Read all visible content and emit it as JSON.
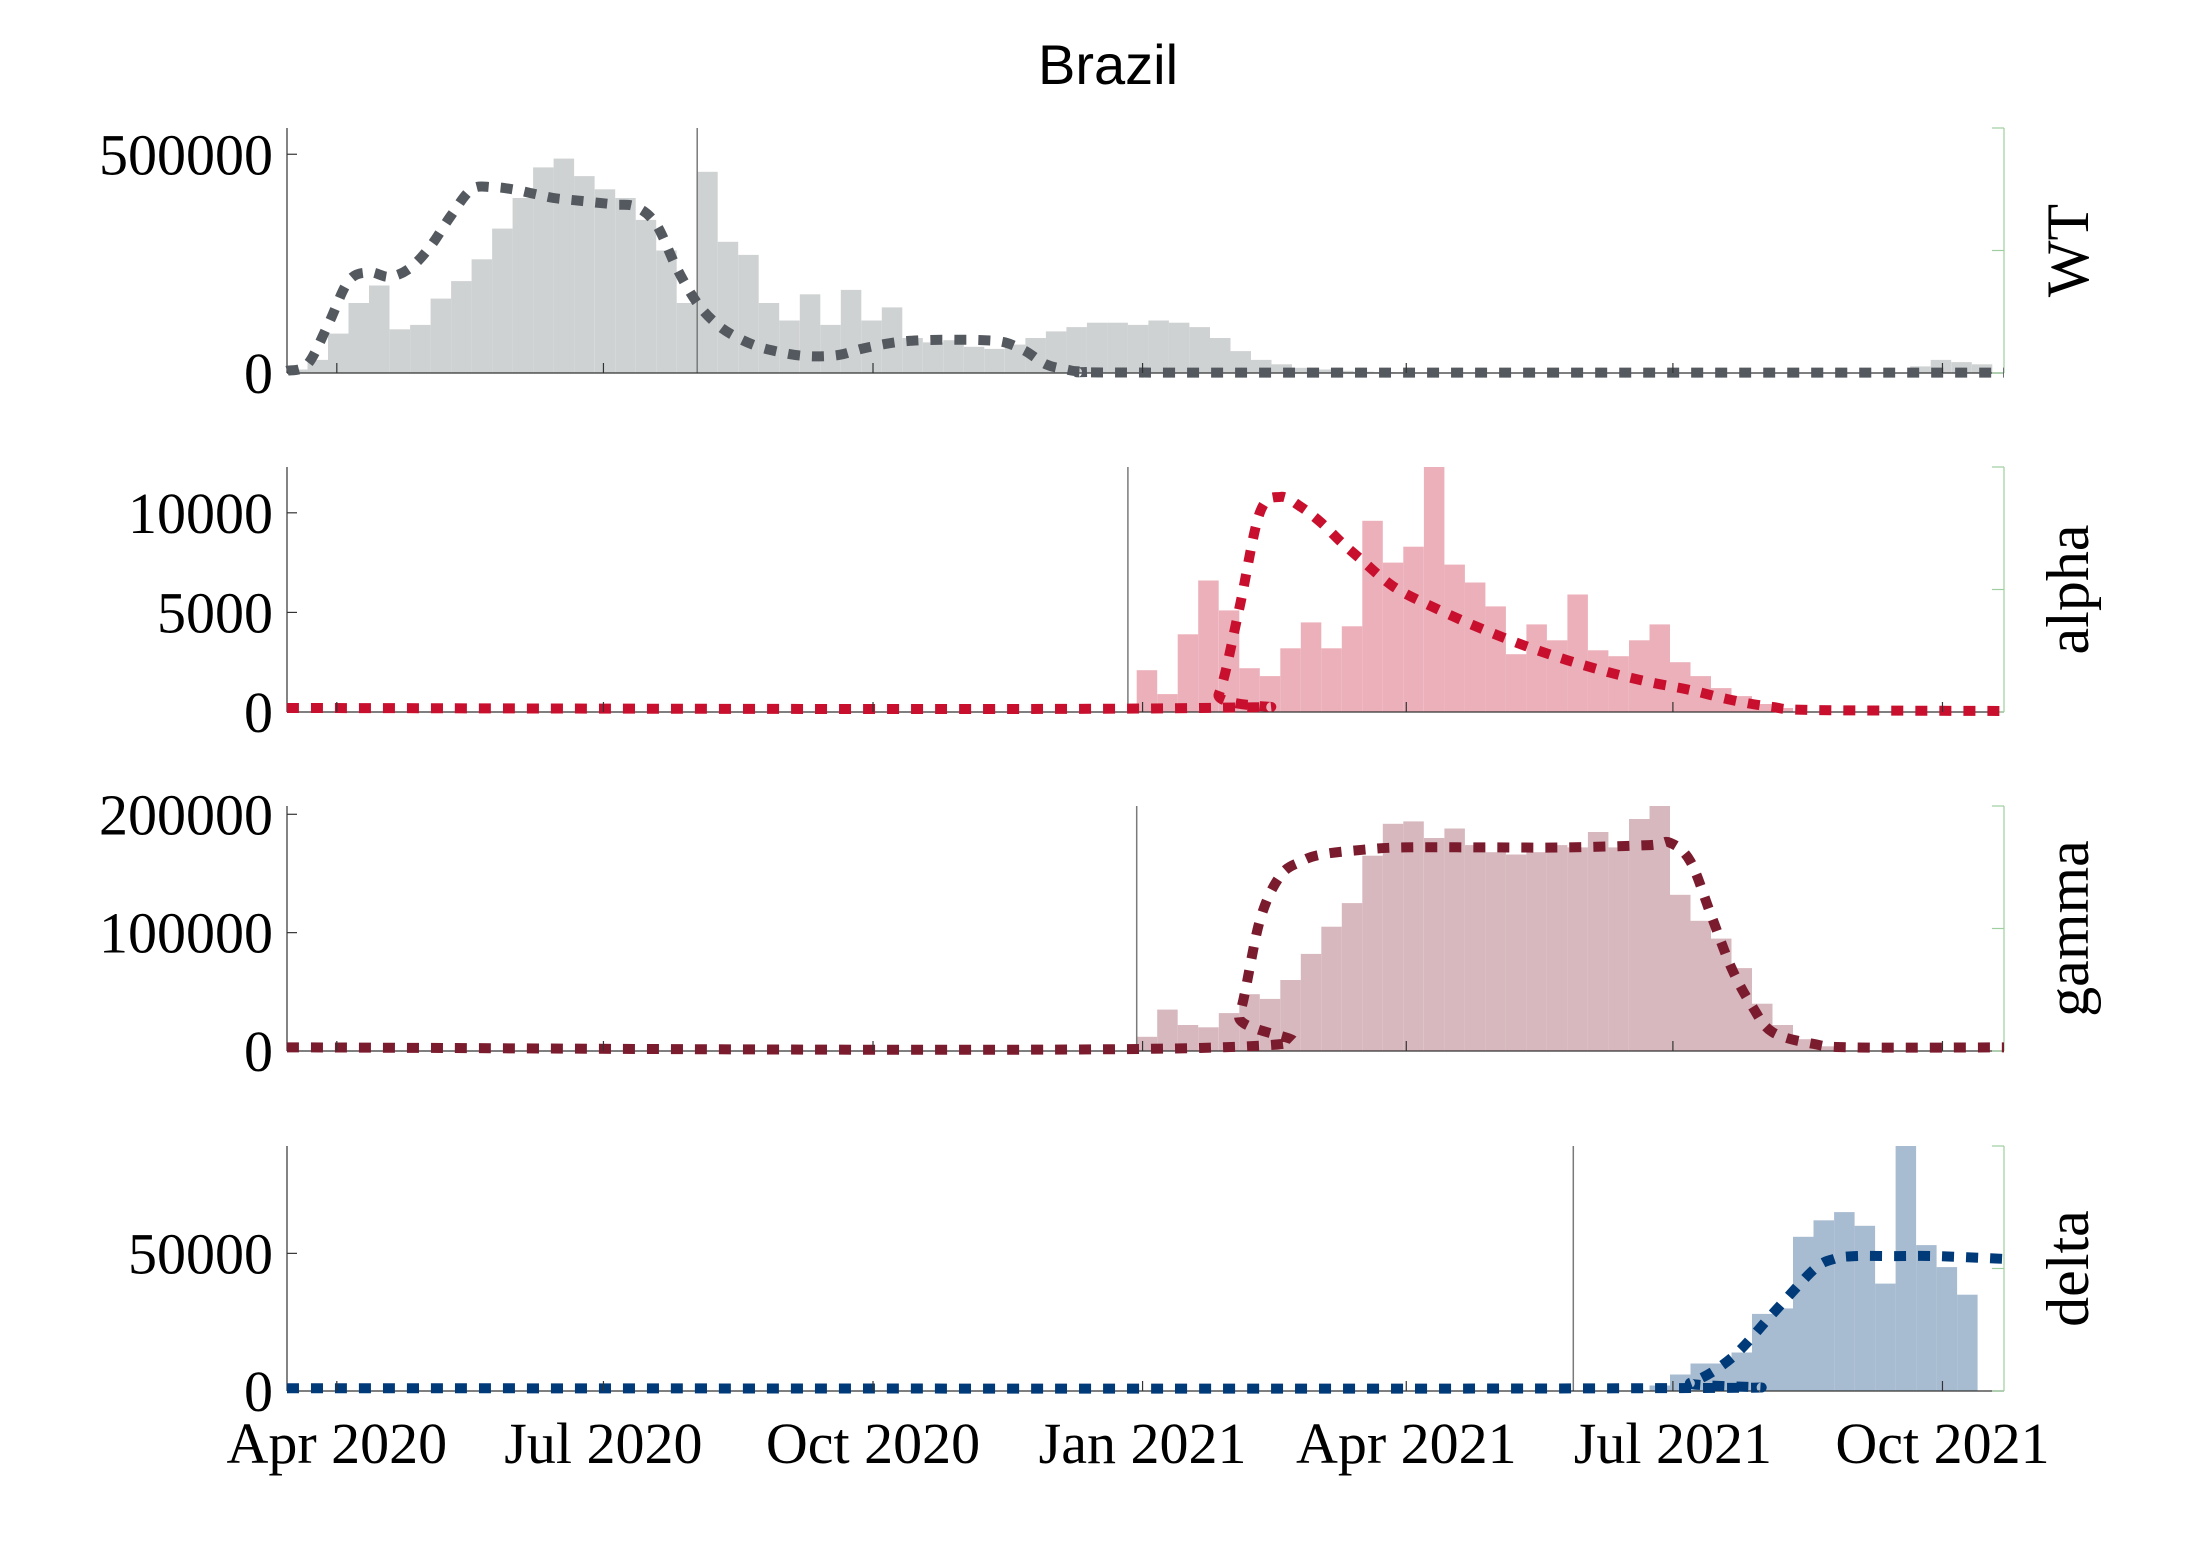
{
  "chart_data": {
    "type": "bar",
    "title": "Brazil",
    "x_axis": {
      "range": [
        "2020-03-15",
        "2021-10-22"
      ],
      "ticks": [
        "2020-04-01",
        "2020-07-01",
        "2020-10-01",
        "2021-01-01",
        "2021-04-01",
        "2021-07-01",
        "2021-10-01"
      ],
      "tick_labels": [
        "Apr 2020",
        "Jul 2020",
        "Oct 2020",
        "Jan 2021",
        "Apr 2021",
        "Jul 2021",
        "Oct 2021"
      ]
    },
    "panels": [
      {
        "label": "WT",
        "color": "#54595f",
        "bar_color": "#cfd2d3",
        "ylim": [
          0,
          560000
        ],
        "yticks": [
          0,
          500000
        ],
        "ytick_labels": [
          "0",
          "500000"
        ],
        "bars": [
          [
            "2020-03-15",
            8000
          ],
          [
            "2020-03-22",
            30000
          ],
          [
            "2020-03-29",
            90000
          ],
          [
            "2020-04-05",
            160000
          ],
          [
            "2020-04-12",
            200000
          ],
          [
            "2020-04-19",
            100000
          ],
          [
            "2020-04-26",
            110000
          ],
          [
            "2020-05-03",
            170000
          ],
          [
            "2020-05-10",
            210000
          ],
          [
            "2020-05-17",
            260000
          ],
          [
            "2020-05-24",
            330000
          ],
          [
            "2020-05-31",
            400000
          ],
          [
            "2020-06-07",
            470000
          ],
          [
            "2020-06-14",
            490000
          ],
          [
            "2020-06-21",
            450000
          ],
          [
            "2020-06-28",
            420000
          ],
          [
            "2020-07-05",
            400000
          ],
          [
            "2020-07-12",
            350000
          ],
          [
            "2020-07-19",
            280000
          ],
          [
            "2020-07-26",
            160000
          ],
          [
            "2020-08-02",
            460000
          ],
          [
            "2020-08-09",
            300000
          ],
          [
            "2020-08-16",
            270000
          ],
          [
            "2020-08-23",
            160000
          ],
          [
            "2020-08-30",
            120000
          ],
          [
            "2020-09-06",
            180000
          ],
          [
            "2020-09-13",
            110000
          ],
          [
            "2020-09-20",
            190000
          ],
          [
            "2020-09-27",
            120000
          ],
          [
            "2020-10-04",
            150000
          ],
          [
            "2020-10-11",
            80000
          ],
          [
            "2020-10-18",
            70000
          ],
          [
            "2020-10-25",
            75000
          ],
          [
            "2020-11-01",
            60000
          ],
          [
            "2020-11-08",
            55000
          ],
          [
            "2020-11-15",
            65000
          ],
          [
            "2020-11-22",
            80000
          ],
          [
            "2020-11-29",
            95000
          ],
          [
            "2020-12-06",
            105000
          ],
          [
            "2020-12-13",
            115000
          ],
          [
            "2020-12-20",
            115000
          ],
          [
            "2020-12-27",
            110000
          ],
          [
            "2021-01-03",
            120000
          ],
          [
            "2021-01-10",
            115000
          ],
          [
            "2021-01-17",
            105000
          ],
          [
            "2021-01-24",
            80000
          ],
          [
            "2021-01-31",
            50000
          ],
          [
            "2021-02-07",
            30000
          ],
          [
            "2021-02-14",
            20000
          ],
          [
            "2021-02-21",
            12000
          ],
          [
            "2021-02-28",
            8000
          ],
          [
            "2021-03-07",
            5000
          ],
          [
            "2021-03-14",
            3000
          ],
          [
            "2021-03-21",
            2000
          ],
          [
            "2021-03-28",
            1500
          ],
          [
            "2021-04-04",
            1000
          ],
          [
            "2021-09-20",
            15000
          ],
          [
            "2021-09-27",
            30000
          ],
          [
            "2021-10-04",
            25000
          ],
          [
            "2021-10-11",
            20000
          ]
        ],
        "model": [
          [
            "2020-03-15",
            5000
          ],
          [
            "2020-03-22",
            20000
          ],
          [
            "2020-03-29",
            110000
          ],
          [
            "2020-04-05",
            210000
          ],
          [
            "2020-04-12",
            230000
          ],
          [
            "2020-04-19",
            220000
          ],
          [
            "2020-04-26",
            240000
          ],
          [
            "2020-05-03",
            290000
          ],
          [
            "2020-05-10",
            360000
          ],
          [
            "2020-05-17",
            420000
          ],
          [
            "2020-05-24",
            425000
          ],
          [
            "2020-05-31",
            420000
          ],
          [
            "2020-06-07",
            410000
          ],
          [
            "2020-06-14",
            400000
          ],
          [
            "2020-06-21",
            395000
          ],
          [
            "2020-06-28",
            390000
          ],
          [
            "2020-07-05",
            385000
          ],
          [
            "2020-07-12",
            380000
          ],
          [
            "2020-07-19",
            340000
          ],
          [
            "2020-07-26",
            240000
          ],
          [
            "2020-08-02",
            160000
          ],
          [
            "2020-08-09",
            110000
          ],
          [
            "2020-08-16",
            80000
          ],
          [
            "2020-08-23",
            60000
          ],
          [
            "2020-08-30",
            48000
          ],
          [
            "2020-09-06",
            40000
          ],
          [
            "2020-09-13",
            38000
          ],
          [
            "2020-09-20",
            42000
          ],
          [
            "2020-09-27",
            55000
          ],
          [
            "2020-10-04",
            65000
          ],
          [
            "2020-10-11",
            72000
          ],
          [
            "2020-10-18",
            75000
          ],
          [
            "2020-10-25",
            76000
          ],
          [
            "2020-11-01",
            76000
          ],
          [
            "2020-11-08",
            75000
          ],
          [
            "2020-11-15",
            70000
          ],
          [
            "2020-11-22",
            50000
          ],
          [
            "2020-11-29",
            20000
          ],
          [
            "2020-12-06",
            8000
          ],
          [
            "2020-12-13",
            3000
          ],
          [
            "2021-01-10",
            1000
          ],
          [
            "2021-10-22",
            1000
          ]
        ],
        "marker_date": "2020-08-02"
      },
      {
        "label": "alpha",
        "color": "#c8102e",
        "bar_color": "#ecb0ba",
        "ylim": [
          0,
          12300
        ],
        "yticks": [
          0,
          5000,
          10000
        ],
        "ytick_labels": [
          "0",
          "5000",
          "10000"
        ],
        "bars": [
          [
            "2020-12-30",
            2100
          ],
          [
            "2021-01-06",
            900
          ],
          [
            "2021-01-13",
            3900
          ],
          [
            "2021-01-20",
            6600
          ],
          [
            "2021-01-27",
            5100
          ],
          [
            "2021-02-03",
            2200
          ],
          [
            "2021-02-10",
            1800
          ],
          [
            "2021-02-17",
            3200
          ],
          [
            "2021-02-24",
            4500
          ],
          [
            "2021-03-03",
            3200
          ],
          [
            "2021-03-10",
            4300
          ],
          [
            "2021-03-17",
            9600
          ],
          [
            "2021-03-24",
            7500
          ],
          [
            "2021-03-31",
            8300
          ],
          [
            "2021-04-07",
            12300
          ],
          [
            "2021-04-14",
            7400
          ],
          [
            "2021-04-21",
            6500
          ],
          [
            "2021-04-28",
            5300
          ],
          [
            "2021-05-05",
            2900
          ],
          [
            "2021-05-12",
            4400
          ],
          [
            "2021-05-19",
            3600
          ],
          [
            "2021-05-26",
            5900
          ],
          [
            "2021-06-02",
            3100
          ],
          [
            "2021-06-09",
            2800
          ],
          [
            "2021-06-16",
            3600
          ],
          [
            "2021-06-23",
            4400
          ],
          [
            "2021-06-30",
            2500
          ],
          [
            "2021-07-07",
            1800
          ],
          [
            "2021-07-14",
            1200
          ],
          [
            "2021-07-21",
            800
          ],
          [
            "2021-07-28",
            400
          ],
          [
            "2021-08-04",
            200
          ]
        ],
        "model": [
          [
            "2020-03-15",
            200
          ],
          [
            "2021-01-20",
            200
          ],
          [
            "2021-01-27",
            900
          ],
          [
            "2021-02-03",
            5200
          ],
          [
            "2021-02-10",
            10000
          ],
          [
            "2021-02-17",
            10800
          ],
          [
            "2021-02-24",
            10300
          ],
          [
            "2021-03-03",
            9500
          ],
          [
            "2021-03-10",
            8500
          ],
          [
            "2021-03-17",
            7600
          ],
          [
            "2021-03-24",
            6700
          ],
          [
            "2021-03-31",
            6000
          ],
          [
            "2021-04-14",
            5000
          ],
          [
            "2021-04-28",
            4100
          ],
          [
            "2021-05-12",
            3300
          ],
          [
            "2021-05-26",
            2600
          ],
          [
            "2021-06-09",
            2000
          ],
          [
            "2021-06-23",
            1500
          ],
          [
            "2021-07-07",
            1100
          ],
          [
            "2021-07-21",
            600
          ],
          [
            "2021-08-04",
            250
          ],
          [
            "2021-08-18",
            100
          ],
          [
            "2021-10-22",
            50
          ]
        ],
        "marker_date": "2020-12-27"
      },
      {
        "label": "gamma",
        "color": "#7b1c2e",
        "bar_color": "#d7b8be",
        "ylim": [
          0,
          207000
        ],
        "yticks": [
          0,
          100000,
          200000
        ],
        "ytick_labels": [
          "0",
          "100000",
          "200000"
        ],
        "bars": [
          [
            "2020-12-30",
            12000
          ],
          [
            "2021-01-06",
            35000
          ],
          [
            "2021-01-13",
            22000
          ],
          [
            "2021-01-20",
            20000
          ],
          [
            "2021-01-27",
            32000
          ],
          [
            "2021-02-03",
            48000
          ],
          [
            "2021-02-10",
            44000
          ],
          [
            "2021-02-17",
            60000
          ],
          [
            "2021-02-24",
            82000
          ],
          [
            "2021-03-03",
            105000
          ],
          [
            "2021-03-10",
            125000
          ],
          [
            "2021-03-17",
            165000
          ],
          [
            "2021-03-24",
            192000
          ],
          [
            "2021-03-31",
            194000
          ],
          [
            "2021-04-07",
            180000
          ],
          [
            "2021-04-14",
            188000
          ],
          [
            "2021-04-21",
            174000
          ],
          [
            "2021-04-28",
            168000
          ],
          [
            "2021-05-05",
            166000
          ],
          [
            "2021-05-12",
            168000
          ],
          [
            "2021-05-19",
            174000
          ],
          [
            "2021-05-26",
            172000
          ],
          [
            "2021-06-02",
            185000
          ],
          [
            "2021-06-09",
            172000
          ],
          [
            "2021-06-16",
            196000
          ],
          [
            "2021-06-23",
            208000
          ],
          [
            "2021-06-30",
            132000
          ],
          [
            "2021-07-07",
            110000
          ],
          [
            "2021-07-14",
            95000
          ],
          [
            "2021-07-21",
            70000
          ],
          [
            "2021-07-28",
            40000
          ],
          [
            "2021-08-04",
            22000
          ],
          [
            "2021-08-11",
            10000
          ],
          [
            "2021-08-18",
            4000
          ]
        ],
        "model": [
          [
            "2020-03-15",
            3000
          ],
          [
            "2021-01-27",
            3000
          ],
          [
            "2021-02-03",
            30000
          ],
          [
            "2021-02-10",
            110000
          ],
          [
            "2021-02-17",
            148000
          ],
          [
            "2021-02-24",
            160000
          ],
          [
            "2021-03-03",
            166000
          ],
          [
            "2021-03-17",
            170000
          ],
          [
            "2021-03-31",
            172000
          ],
          [
            "2021-04-28",
            172000
          ],
          [
            "2021-05-26",
            172000
          ],
          [
            "2021-06-23",
            174000
          ],
          [
            "2021-06-30",
            176000
          ],
          [
            "2021-07-07",
            160000
          ],
          [
            "2021-07-14",
            115000
          ],
          [
            "2021-07-21",
            70000
          ],
          [
            "2021-07-28",
            38000
          ],
          [
            "2021-08-04",
            16000
          ],
          [
            "2021-08-18",
            6000
          ],
          [
            "2021-09-01",
            3000
          ],
          [
            "2021-10-22",
            3000
          ]
        ],
        "marker_date": "2020-12-30"
      },
      {
        "label": "delta",
        "color": "#003a78",
        "bar_color": "#a8bcd1",
        "ylim": [
          0,
          89000
        ],
        "yticks": [
          0,
          50000
        ],
        "ytick_labels": [
          "0",
          "50000"
        ],
        "bars": [
          [
            "2021-06-23",
            2000
          ],
          [
            "2021-06-30",
            6000
          ],
          [
            "2021-07-07",
            10000
          ],
          [
            "2021-07-14",
            10000
          ],
          [
            "2021-07-21",
            14000
          ],
          [
            "2021-07-28",
            28000
          ],
          [
            "2021-08-04",
            30000
          ],
          [
            "2021-08-11",
            56000
          ],
          [
            "2021-08-18",
            62000
          ],
          [
            "2021-08-25",
            65000
          ],
          [
            "2021-09-01",
            60000
          ],
          [
            "2021-09-08",
            39000
          ],
          [
            "2021-09-15",
            89000
          ],
          [
            "2021-09-22",
            53000
          ],
          [
            "2021-09-29",
            45000
          ],
          [
            "2021-10-06",
            35000
          ]
        ],
        "model": [
          [
            "2020-03-15",
            1000
          ],
          [
            "2021-06-23",
            1000
          ],
          [
            "2021-07-07",
            3000
          ],
          [
            "2021-07-21",
            12000
          ],
          [
            "2021-08-04",
            28000
          ],
          [
            "2021-08-18",
            44000
          ],
          [
            "2021-08-25",
            48000
          ],
          [
            "2021-09-01",
            49000
          ],
          [
            "2021-09-15",
            49000
          ],
          [
            "2021-09-29",
            49000
          ],
          [
            "2021-10-22",
            48000
          ]
        ],
        "marker_date": "2021-05-28"
      }
    ]
  }
}
